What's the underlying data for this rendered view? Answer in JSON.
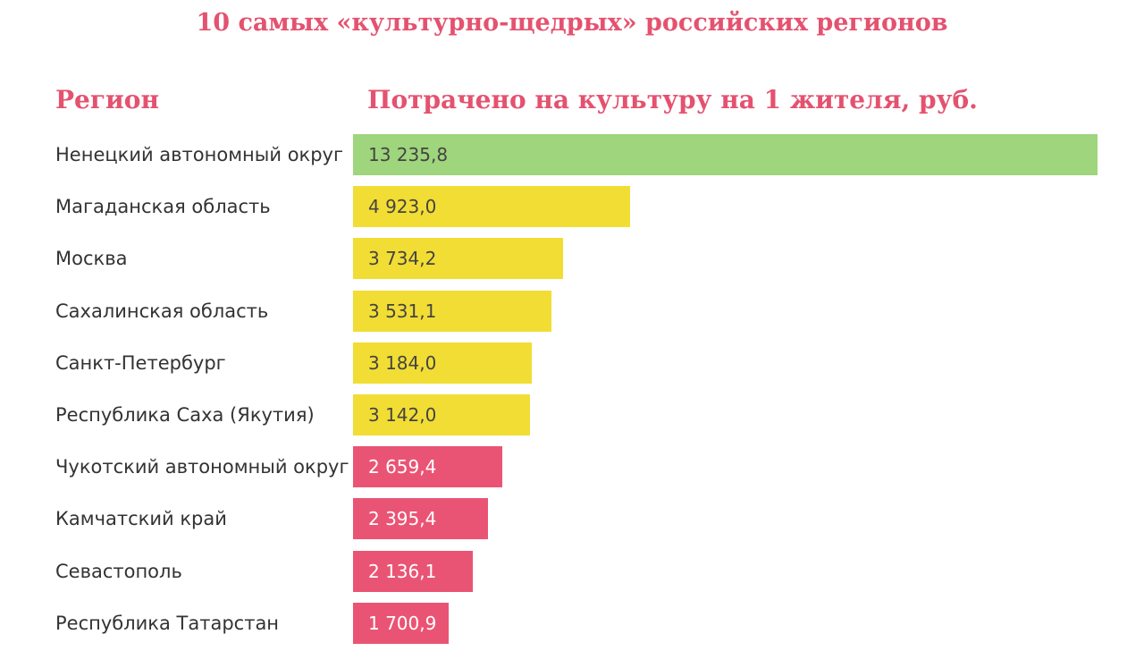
{
  "chart_data": {
    "type": "bar",
    "orientation": "horizontal",
    "title": "10 самых «культурно-щедрых» российских регионов",
    "xlabel": "Потрачено на культуру на 1 жителя, руб.",
    "ylabel": "Регион",
    "categories": [
      "Ненецкий автономный округ",
      "Магаданская область",
      "Москва",
      "Сахалинская область",
      "Санкт-Петербург",
      "Республика Саха (Якутия)",
      "Чукотский автономный округ",
      "Камчатский край",
      "Севастополь",
      "Республика Татарстан"
    ],
    "values": [
      13235.8,
      4923.0,
      3734.2,
      3531.1,
      3184.0,
      3142.0,
      2659.4,
      2395.4,
      2136.1,
      1700.9
    ],
    "value_labels": [
      "13 235,8",
      "4 923,0",
      "3 734,2",
      "3 531,1",
      "3 184,0",
      "3 142,0",
      "2 659,4",
      "2 395,4",
      "2 136,1",
      "1 700,9"
    ],
    "colors": [
      "#9fd57c",
      "#f2dd34",
      "#f2dd34",
      "#f2dd34",
      "#f2dd34",
      "#f2dd34",
      "#ea5474",
      "#ea5474",
      "#ea5474",
      "#ea5474"
    ],
    "label_colors": [
      "#444444",
      "#444444",
      "#444444",
      "#444444",
      "#444444",
      "#444444",
      "#ffffff",
      "#ffffff",
      "#ffffff",
      "#ffffff"
    ],
    "xlim": [
      0,
      13235.8
    ],
    "grid": false,
    "legend": "none"
  }
}
